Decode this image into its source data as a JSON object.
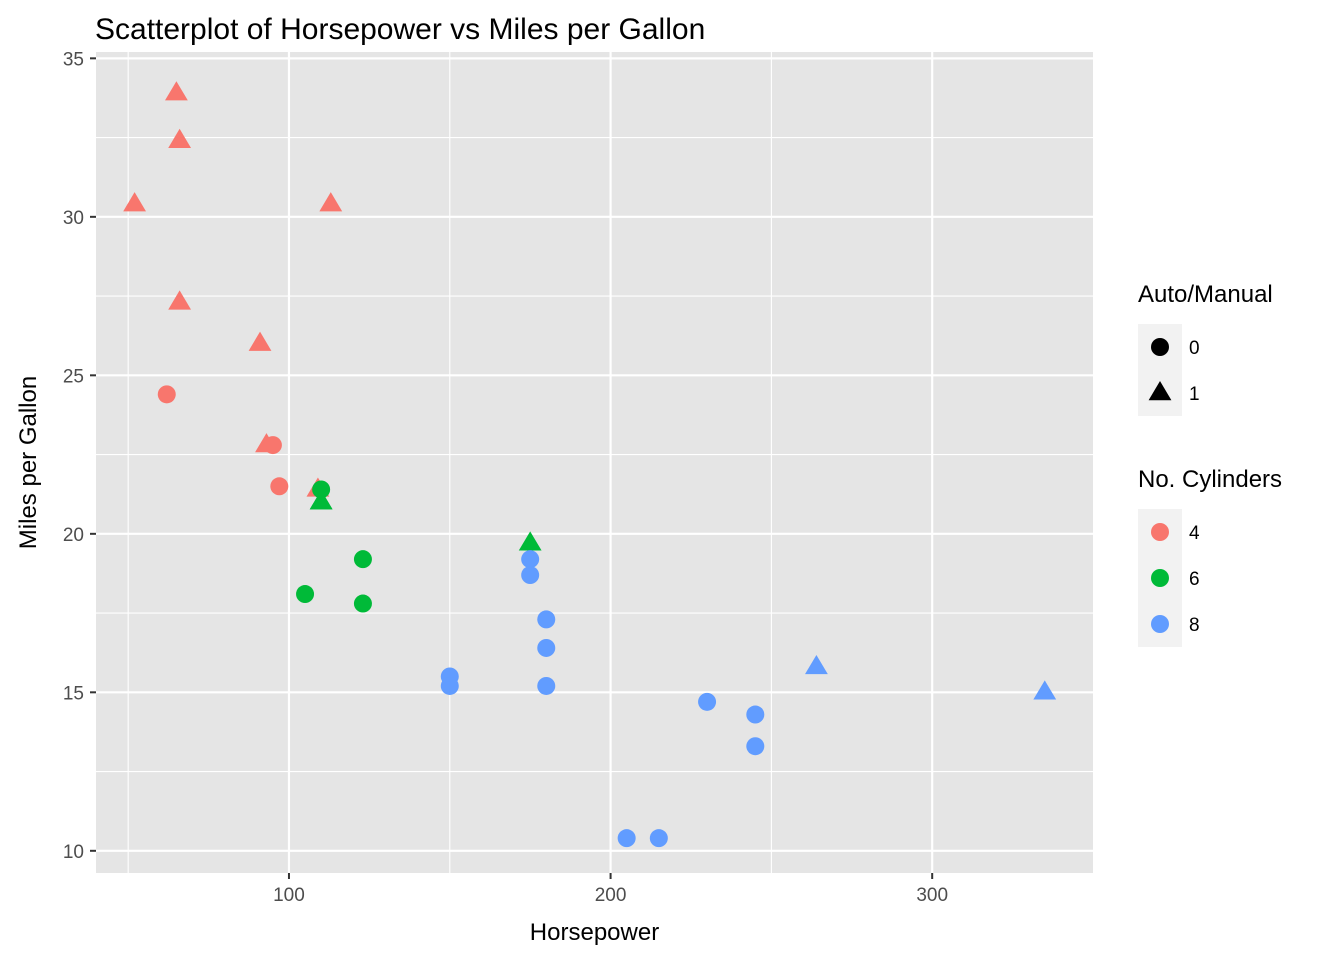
{
  "chart_data": {
    "type": "scatter",
    "title": "Scatterplot of Horsepower vs Miles per Gallon",
    "xlabel": "Horsepower",
    "ylabel": "Miles per Gallon",
    "xlim": [
      40,
      350
    ],
    "ylim": [
      9.3,
      35.2
    ],
    "x_ticks": [
      100,
      200,
      300
    ],
    "x_minor_ticks": [
      50,
      150,
      250
    ],
    "y_ticks": [
      10,
      15,
      20,
      25,
      30,
      35
    ],
    "y_minor_ticks": [
      12.5,
      17.5,
      22.5,
      27.5,
      32.5
    ],
    "grid": true,
    "panel_color": "#e5e5e5",
    "grid_color": "#ffffff",
    "legend_position": "right",
    "legends": [
      {
        "title": "Auto/Manual",
        "kind": "shape",
        "items": [
          {
            "label": "0",
            "shape": "circle"
          },
          {
            "label": "1",
            "shape": "triangle"
          }
        ]
      },
      {
        "title": "No. Cylinders",
        "kind": "color",
        "items": [
          {
            "label": "4",
            "color": "#f8766d"
          },
          {
            "label": "6",
            "color": "#00ba38"
          },
          {
            "label": "8",
            "color": "#619cff"
          }
        ]
      }
    ],
    "points": [
      {
        "hp": 65,
        "mpg": 33.9,
        "cyl": 4,
        "am": 1
      },
      {
        "hp": 66,
        "mpg": 32.4,
        "cyl": 4,
        "am": 1
      },
      {
        "hp": 52,
        "mpg": 30.4,
        "cyl": 4,
        "am": 1
      },
      {
        "hp": 113,
        "mpg": 30.4,
        "cyl": 4,
        "am": 1
      },
      {
        "hp": 66,
        "mpg": 27.3,
        "cyl": 4,
        "am": 1
      },
      {
        "hp": 91,
        "mpg": 26.0,
        "cyl": 4,
        "am": 1
      },
      {
        "hp": 62,
        "mpg": 24.4,
        "cyl": 4,
        "am": 0
      },
      {
        "hp": 93,
        "mpg": 22.8,
        "cyl": 4,
        "am": 1
      },
      {
        "hp": 95,
        "mpg": 22.8,
        "cyl": 4,
        "am": 0
      },
      {
        "hp": 97,
        "mpg": 21.5,
        "cyl": 4,
        "am": 0
      },
      {
        "hp": 109,
        "mpg": 21.4,
        "cyl": 4,
        "am": 1
      },
      {
        "hp": 110,
        "mpg": 21.4,
        "cyl": 6,
        "am": 0
      },
      {
        "hp": 110,
        "mpg": 21.0,
        "cyl": 6,
        "am": 1
      },
      {
        "hp": 110,
        "mpg": 21.0,
        "cyl": 6,
        "am": 1
      },
      {
        "hp": 175,
        "mpg": 19.7,
        "cyl": 6,
        "am": 1
      },
      {
        "hp": 123,
        "mpg": 19.2,
        "cyl": 6,
        "am": 0
      },
      {
        "hp": 105,
        "mpg": 18.1,
        "cyl": 6,
        "am": 0
      },
      {
        "hp": 123,
        "mpg": 17.8,
        "cyl": 6,
        "am": 0
      },
      {
        "hp": 175,
        "mpg": 19.2,
        "cyl": 8,
        "am": 0
      },
      {
        "hp": 175,
        "mpg": 18.7,
        "cyl": 8,
        "am": 0
      },
      {
        "hp": 180,
        "mpg": 17.3,
        "cyl": 8,
        "am": 0
      },
      {
        "hp": 180,
        "mpg": 16.4,
        "cyl": 8,
        "am": 0
      },
      {
        "hp": 180,
        "mpg": 15.2,
        "cyl": 8,
        "am": 0
      },
      {
        "hp": 150,
        "mpg": 15.5,
        "cyl": 8,
        "am": 0
      },
      {
        "hp": 150,
        "mpg": 15.2,
        "cyl": 8,
        "am": 0
      },
      {
        "hp": 264,
        "mpg": 15.8,
        "cyl": 8,
        "am": 1
      },
      {
        "hp": 335,
        "mpg": 15.0,
        "cyl": 8,
        "am": 1
      },
      {
        "hp": 230,
        "mpg": 14.7,
        "cyl": 8,
        "am": 0
      },
      {
        "hp": 245,
        "mpg": 14.3,
        "cyl": 8,
        "am": 0
      },
      {
        "hp": 245,
        "mpg": 13.3,
        "cyl": 8,
        "am": 0
      },
      {
        "hp": 205,
        "mpg": 10.4,
        "cyl": 8,
        "am": 0
      },
      {
        "hp": 215,
        "mpg": 10.4,
        "cyl": 8,
        "am": 0
      }
    ]
  }
}
